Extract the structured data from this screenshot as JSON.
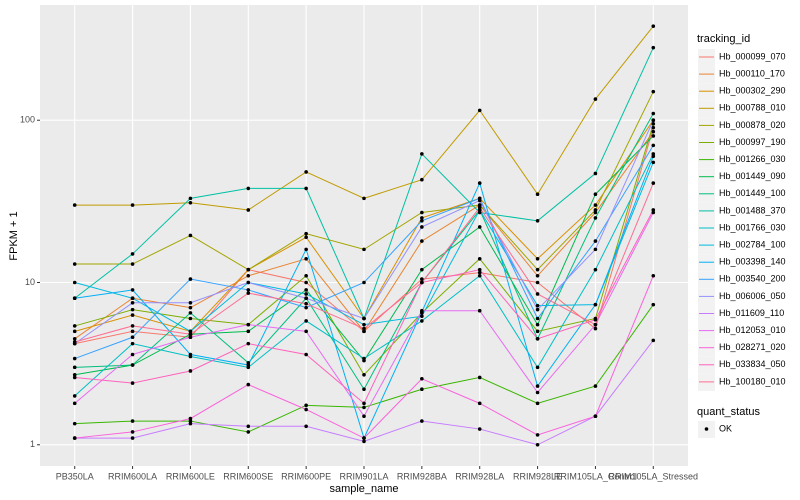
{
  "chart_data": {
    "type": "line",
    "log_y": true,
    "grid": true,
    "x_label": "sample_name",
    "y_label": "FPKM + 1",
    "legend_title": "tracking_id",
    "point_legend": {
      "title": "quant_status",
      "labels": [
        "OK"
      ],
      "color": "#000000"
    },
    "categories": [
      "PB350LA",
      "RRIM600LA",
      "RRIM600LE",
      "RRIM600SE",
      "RRIM600PE",
      "RRIM901LA",
      "RRIM928BA",
      "RRIM928LA",
      "RRIM928LE",
      "RRIM105LA_Control",
      "RRIM105LA_Stressed"
    ],
    "ylim": [
      0.74,
      513
    ],
    "yticks": [
      1,
      10,
      100
    ],
    "series": [
      {
        "name": "Hb_000099_070",
        "color": "#F8766D",
        "values": [
          4.2,
          5,
          4.6,
          12,
          10,
          5,
          10.5,
          11.5,
          10,
          5.2,
          90
        ]
      },
      {
        "name": "Hb_000110_170",
        "color": "#EA8331",
        "values": [
          4.5,
          8,
          7,
          11,
          14,
          5,
          18,
          30,
          11,
          27,
          85
        ]
      },
      {
        "name": "Hb_000302_290",
        "color": "#D89000",
        "values": [
          5,
          6.3,
          5,
          12,
          19,
          6,
          25,
          33,
          14,
          30,
          100
        ]
      },
      {
        "name": "Hb_000788_010",
        "color": "#C09B00",
        "values": [
          30,
          30,
          31,
          28,
          48,
          33,
          43,
          115,
          35,
          135,
          380
        ]
      },
      {
        "name": "Hb_000878_020",
        "color": "#A3A500",
        "values": [
          13,
          13,
          19.5,
          12,
          20,
          16,
          27,
          30,
          12,
          28,
          150
        ]
      },
      {
        "name": "Hb_000997_190",
        "color": "#7CAE00",
        "values": [
          5.4,
          6.8,
          6,
          5.5,
          11,
          2.7,
          6.5,
          14,
          5,
          6,
          95
        ]
      },
      {
        "name": "Hb_001266_030",
        "color": "#39B600",
        "values": [
          1.35,
          1.4,
          1.4,
          1.2,
          1.75,
          1.7,
          2.2,
          2.6,
          1.8,
          2.3,
          7.3
        ]
      },
      {
        "name": "Hb_001449_090",
        "color": "#00BB4E",
        "values": [
          2.7,
          3.1,
          4.8,
          5,
          9,
          3.3,
          12,
          22,
          5.5,
          35,
          80
        ]
      },
      {
        "name": "Hb_001449_100",
        "color": "#00BF7D",
        "values": [
          3,
          3.1,
          6.5,
          3.2,
          8,
          2.2,
          10,
          28,
          4.5,
          25,
          110
        ]
      },
      {
        "name": "Hb_001488_370",
        "color": "#00C1A3",
        "values": [
          8,
          15,
          33,
          38,
          38,
          6,
          62,
          27,
          24,
          47,
          280
        ]
      },
      {
        "name": "Hb_001766_030",
        "color": "#00BFC4",
        "values": [
          2,
          4.2,
          3.5,
          3,
          5.8,
          3.4,
          5.8,
          11,
          3,
          12,
          62
        ]
      },
      {
        "name": "Hb_002784_100",
        "color": "#00BAE0",
        "values": [
          10,
          8,
          5,
          10,
          8.5,
          5.5,
          6.2,
          28,
          7.2,
          7.3,
          55
        ]
      },
      {
        "name": "Hb_003398_140",
        "color": "#00B0F6",
        "values": [
          8,
          9,
          3.6,
          3.1,
          16,
          1.1,
          6.6,
          41,
          2.3,
          7.3,
          60
        ]
      },
      {
        "name": "Hb_003540_200",
        "color": "#35A2FF",
        "values": [
          3.4,
          4.6,
          10.5,
          9,
          7,
          10,
          24,
          33,
          6,
          18,
          70
        ]
      },
      {
        "name": "Hb_006006_050",
        "color": "#9590FF",
        "values": [
          4.2,
          7.5,
          7.5,
          10,
          8,
          6,
          22,
          32,
          6.8,
          16,
          100
        ]
      },
      {
        "name": "Hb_011609_110",
        "color": "#C77CFF",
        "values": [
          1.1,
          1.1,
          1.35,
          1.3,
          1.3,
          1.05,
          1.4,
          1.25,
          1,
          1.5,
          4.4
        ]
      },
      {
        "name": "Hb_012053_010",
        "color": "#E76BF3",
        "values": [
          1.8,
          3.6,
          4.6,
          5.5,
          5,
          1.5,
          6.7,
          6.7,
          2.1,
          5.5,
          27
        ]
      },
      {
        "name": "Hb_028271_020",
        "color": "#FA62DB",
        "values": [
          1.1,
          1.2,
          1.45,
          2.35,
          1.65,
          1.1,
          2.55,
          1.8,
          1.15,
          1.5,
          11
        ]
      },
      {
        "name": "Hb_033834_050",
        "color": "#FF62BC",
        "values": [
          2.6,
          2.4,
          2.85,
          4.2,
          3.6,
          1.8,
          10,
          12,
          4.5,
          5.9,
          28
        ]
      },
      {
        "name": "Hb_100180_010",
        "color": "#FF6C91",
        "values": [
          4.3,
          5.4,
          4.8,
          8.6,
          7.4,
          5.2,
          10,
          29,
          8.5,
          5.5,
          41
        ]
      }
    ]
  }
}
